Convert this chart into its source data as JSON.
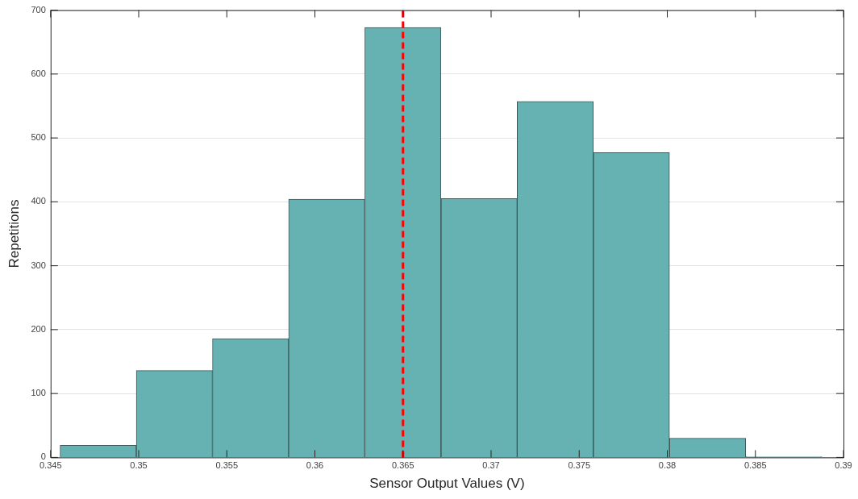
{
  "chart_data": {
    "type": "histogram",
    "xlabel": "Sensor Output Values (V)",
    "ylabel": "Repetitions",
    "bins": [
      0.34554,
      0.34986,
      0.35419,
      0.35851,
      0.36283,
      0.36716,
      0.37148,
      0.3758,
      0.38013,
      0.38445,
      0.38877
    ],
    "values": [
      19,
      136,
      186,
      404,
      673,
      405,
      557,
      477,
      30,
      1
    ],
    "color": "#66b2b2",
    "xlim": [
      0.345,
      0.39
    ],
    "xticks": [
      0.345,
      0.35,
      0.355,
      0.36,
      0.365,
      0.37,
      0.375,
      0.38,
      0.385,
      0.39
    ],
    "ylim": [
      0,
      700
    ],
    "yticks": [
      0,
      100,
      200,
      300,
      400,
      500,
      600,
      700
    ],
    "grid": "y",
    "ref_lines": [
      {
        "axis": "x",
        "value": 0.365,
        "color": "#ff0000",
        "line_style": "dashed"
      }
    ]
  }
}
